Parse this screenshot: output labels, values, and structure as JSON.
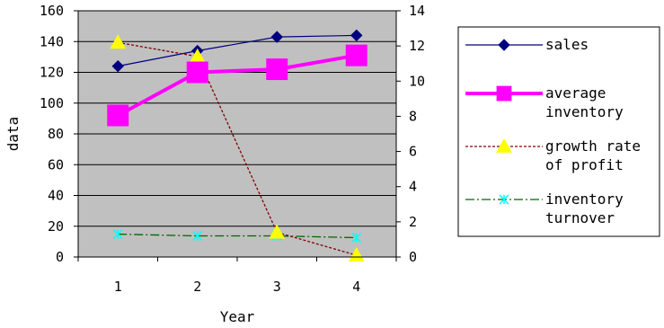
{
  "chart_data": {
    "type": "line",
    "title": "",
    "xlabel": "Year",
    "ylabel": "data",
    "x": [
      1,
      2,
      3,
      4
    ],
    "ylim_left": [
      0,
      160
    ],
    "yticks_left": [
      0,
      20,
      40,
      60,
      80,
      100,
      120,
      140,
      160
    ],
    "ylim_right": [
      0,
      14
    ],
    "yticks_right": [
      0,
      2,
      4,
      6,
      8,
      10,
      12,
      14
    ],
    "grid": "horizontal",
    "plot_background": "#c0c0c0",
    "legend_position": "right",
    "series": [
      {
        "key": "sales",
        "name": "sales",
        "axis": "left",
        "values": [
          124,
          134,
          143,
          144
        ],
        "color": "#000080",
        "marker": "diamond",
        "line": "solid"
      },
      {
        "key": "avg_inv",
        "name": "average inventory",
        "name_lines": [
          "average",
          "inventory"
        ],
        "axis": "left",
        "values": [
          92,
          120,
          122,
          131
        ],
        "color": "#ff00ff",
        "marker": "square",
        "line": "solid-thick"
      },
      {
        "key": "growth",
        "name": "growth rate of profit",
        "name_lines": [
          "growth rate",
          "of profit"
        ],
        "axis": "right",
        "values": [
          12.2,
          11.4,
          1.4,
          0.1
        ],
        "color": "#800000",
        "marker": "triangle",
        "marker_color": "#ffff00",
        "line": "dashed"
      },
      {
        "key": "turnover",
        "name": "inventory turnover",
        "name_lines": [
          "inventory",
          "turnover"
        ],
        "axis": "right",
        "values": [
          1.3,
          1.2,
          1.2,
          1.1
        ],
        "color": "#006600",
        "marker": "x",
        "marker_color": "#00ffff",
        "line": "dash-dot"
      }
    ]
  }
}
